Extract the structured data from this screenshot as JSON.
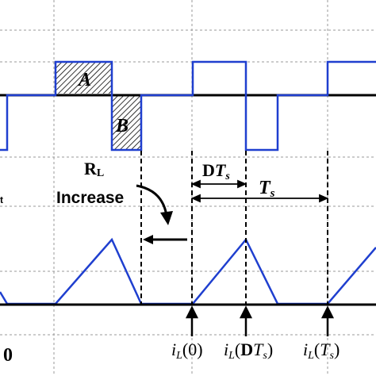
{
  "colors": {
    "waveform": "#1f3fcf",
    "axis": "#000000",
    "grid": "#9a9a9a",
    "background": "#ffffff"
  },
  "labels": {
    "area_a": "A",
    "area_b": "B",
    "rl": "R",
    "rl_sub": "L",
    "increase": "Increase",
    "dts_d": "D",
    "dts_t": "T",
    "dts_s": "s",
    "ts_t": "T",
    "ts_s": "s",
    "zero_label": "0",
    "left_fragment": "t",
    "il0_i": "i",
    "il0_sub": "L",
    "il0_arg": "(0)",
    "ildts_i": "i",
    "ildts_sub": "L",
    "ildts_open": "(",
    "ildts_d": "D",
    "ildts_t": "T",
    "ildts_s": "s",
    "ildts_close": ")",
    "ilts_i": "i",
    "ilts_sub": "L",
    "ilts_open": "(",
    "ilts_t": "T",
    "ilts_s": "s",
    "ilts_close": ")"
  }
}
